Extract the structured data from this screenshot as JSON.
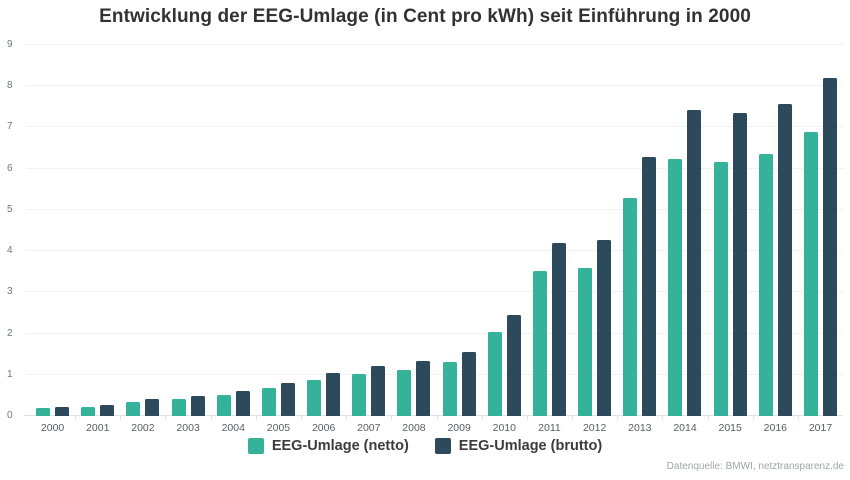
{
  "title": "Entwicklung der EEG-Umlage (in Cent pro kWh) seit Einführung in 2000",
  "footer": "Datenquelle: BMWI, netztransparenz.de",
  "colors": {
    "netto": "#35b29a",
    "brutto": "#2d4a5d",
    "title_text": "#323232",
    "axis_text": "#6f767c",
    "gridline": "#f1f1f2",
    "baseline": "#dce3ea",
    "footer_text": "#a2a5a8"
  },
  "chart_data": {
    "type": "bar",
    "title": "Entwicklung der EEG-Umlage (in Cent pro kWh) seit Einführung in 2000",
    "xlabel": "",
    "ylabel": "",
    "ylim": [
      0,
      9
    ],
    "ytick_step": 1,
    "grid": true,
    "legend_position": "bottom",
    "categories": [
      "2000",
      "2001",
      "2002",
      "2003",
      "2004",
      "2005",
      "2006",
      "2007",
      "2008",
      "2009",
      "2010",
      "2011",
      "2012",
      "2013",
      "2014",
      "2015",
      "2016",
      "2017"
    ],
    "series": [
      {
        "name": "EEG-Umlage (netto)",
        "color": "#35b29a",
        "values": [
          0.19,
          0.23,
          0.35,
          0.41,
          0.51,
          0.68,
          0.88,
          1.02,
          1.12,
          1.31,
          2.05,
          3.53,
          3.59,
          5.28,
          6.24,
          6.17,
          6.35,
          6.88
        ]
      },
      {
        "name": "EEG-Umlage (brutto)",
        "color": "#2d4a5d",
        "values": [
          0.23,
          0.27,
          0.42,
          0.49,
          0.61,
          0.81,
          1.05,
          1.21,
          1.33,
          1.56,
          2.44,
          4.2,
          4.27,
          6.28,
          7.43,
          7.34,
          7.56,
          8.19
        ]
      }
    ]
  }
}
